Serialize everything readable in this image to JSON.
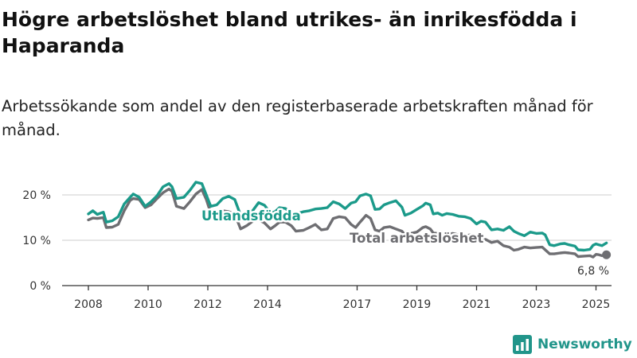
{
  "title": "Högre arbetslöshet bland utrikes- än inrikesfödda i Haparanda",
  "subtitle": "Arbetssökande som andel av den registerbaserade arbetskraften månad för månad.",
  "brand": {
    "name": "Newsworthy"
  },
  "colors": {
    "utlandsfodda": "#1b9a8a",
    "total": "#6e6e72",
    "grid": "#cccccc",
    "axis": "#333333"
  },
  "chart_data": {
    "type": "line",
    "title": "Högre arbetslöshet bland utrikes- än inrikesfödda i Haparanda",
    "subtitle": "Arbetssökande som andel av den registerbaserade arbetskraften månad för månad.",
    "xlabel": "",
    "ylabel": "",
    "xlim": [
      2007.6,
      2025.6
    ],
    "ylim": [
      0,
      20
    ],
    "yticks": [
      0,
      10,
      20
    ],
    "ytick_labels": [
      "0 %",
      "10 %",
      "20 %"
    ],
    "xticks": [
      2008,
      2010,
      2012,
      2014,
      2017,
      2019,
      2021,
      2023,
      2025
    ],
    "xtick_labels": [
      "2008",
      "2010",
      "2012",
      "2014",
      "2017",
      "2019",
      "2021",
      "2023",
      "2025"
    ],
    "grid": "horizontal",
    "legend": "direct labels",
    "end_label": "6,8 %",
    "series": [
      {
        "name": "Utlandsfödda",
        "color": "#1b9a8a",
        "points": [
          [
            2008.0,
            15.8
          ],
          [
            2008.15,
            16.5
          ],
          [
            2008.3,
            15.7
          ],
          [
            2008.5,
            16.2
          ],
          [
            2008.6,
            14.0
          ],
          [
            2008.8,
            14.3
          ],
          [
            2009.0,
            15.2
          ],
          [
            2009.2,
            18.0
          ],
          [
            2009.4,
            19.5
          ],
          [
            2009.5,
            20.2
          ],
          [
            2009.7,
            19.5
          ],
          [
            2009.9,
            17.5
          ],
          [
            2010.1,
            18.5
          ],
          [
            2010.3,
            19.8
          ],
          [
            2010.5,
            21.8
          ],
          [
            2010.7,
            22.5
          ],
          [
            2010.8,
            21.8
          ],
          [
            2010.95,
            19.2
          ],
          [
            2011.2,
            19.5
          ],
          [
            2011.4,
            21.0
          ],
          [
            2011.6,
            22.8
          ],
          [
            2011.8,
            22.5
          ],
          [
            2011.95,
            20.0
          ],
          [
            2012.1,
            17.5
          ],
          [
            2012.3,
            17.8
          ],
          [
            2012.5,
            19.2
          ],
          [
            2012.7,
            19.7
          ],
          [
            2012.9,
            19.0
          ],
          [
            2013.1,
            15.5
          ],
          [
            2013.3,
            15.8
          ],
          [
            2013.5,
            16.5
          ],
          [
            2013.7,
            18.3
          ],
          [
            2013.9,
            17.7
          ],
          [
            2014.1,
            16.0
          ],
          [
            2014.25,
            16.3
          ],
          [
            2014.4,
            17.2
          ],
          [
            2014.6,
            17.0
          ],
          [
            2014.8,
            16.0
          ],
          [
            2014.95,
            15.8
          ],
          [
            2015.2,
            16.3
          ],
          [
            2015.4,
            16.5
          ],
          [
            2015.6,
            16.9
          ],
          [
            2015.8,
            17.0
          ],
          [
            2016.0,
            17.2
          ],
          [
            2016.2,
            18.5
          ],
          [
            2016.4,
            18.0
          ],
          [
            2016.6,
            17.0
          ],
          [
            2016.8,
            18.2
          ],
          [
            2016.95,
            18.5
          ],
          [
            2017.1,
            19.8
          ],
          [
            2017.3,
            20.2
          ],
          [
            2017.45,
            19.8
          ],
          [
            2017.6,
            16.8
          ],
          [
            2017.75,
            16.9
          ],
          [
            2017.9,
            17.8
          ],
          [
            2018.1,
            18.3
          ],
          [
            2018.3,
            18.7
          ],
          [
            2018.5,
            17.3
          ],
          [
            2018.6,
            15.5
          ],
          [
            2018.8,
            16.0
          ],
          [
            2019.0,
            16.8
          ],
          [
            2019.2,
            17.6
          ],
          [
            2019.3,
            18.2
          ],
          [
            2019.45,
            17.8
          ],
          [
            2019.55,
            15.8
          ],
          [
            2019.7,
            16.0
          ],
          [
            2019.85,
            15.5
          ],
          [
            2020.0,
            15.9
          ],
          [
            2020.2,
            15.7
          ],
          [
            2020.4,
            15.3
          ],
          [
            2020.6,
            15.2
          ],
          [
            2020.8,
            14.8
          ],
          [
            2021.0,
            13.6
          ],
          [
            2021.15,
            14.2
          ],
          [
            2021.3,
            14.0
          ],
          [
            2021.5,
            12.3
          ],
          [
            2021.7,
            12.5
          ],
          [
            2021.9,
            12.2
          ],
          [
            2022.1,
            13.0
          ],
          [
            2022.25,
            12.0
          ],
          [
            2022.4,
            11.5
          ],
          [
            2022.6,
            11.0
          ],
          [
            2022.8,
            11.8
          ],
          [
            2023.0,
            11.5
          ],
          [
            2023.2,
            11.6
          ],
          [
            2023.3,
            11.2
          ],
          [
            2023.45,
            9.0
          ],
          [
            2023.6,
            8.8
          ],
          [
            2023.8,
            9.2
          ],
          [
            2023.95,
            9.3
          ],
          [
            2024.1,
            9.0
          ],
          [
            2024.3,
            8.7
          ],
          [
            2024.4,
            7.9
          ],
          [
            2024.6,
            7.8
          ],
          [
            2024.8,
            8.0
          ],
          [
            2024.9,
            8.9
          ],
          [
            2025.0,
            9.2
          ],
          [
            2025.1,
            9.0
          ],
          [
            2025.2,
            8.8
          ],
          [
            2025.35,
            9.4
          ]
        ]
      },
      {
        "name": "Total arbetslöshet",
        "color": "#6e6e72",
        "points": [
          [
            2008.0,
            14.5
          ],
          [
            2008.15,
            14.9
          ],
          [
            2008.3,
            14.8
          ],
          [
            2008.5,
            15.0
          ],
          [
            2008.6,
            12.8
          ],
          [
            2008.8,
            12.9
          ],
          [
            2009.0,
            13.5
          ],
          [
            2009.2,
            16.5
          ],
          [
            2009.4,
            18.8
          ],
          [
            2009.5,
            19.2
          ],
          [
            2009.7,
            19.0
          ],
          [
            2009.9,
            17.2
          ],
          [
            2010.1,
            17.8
          ],
          [
            2010.3,
            19.2
          ],
          [
            2010.5,
            20.5
          ],
          [
            2010.7,
            21.3
          ],
          [
            2010.8,
            20.8
          ],
          [
            2010.95,
            17.5
          ],
          [
            2011.2,
            17.0
          ],
          [
            2011.4,
            18.5
          ],
          [
            2011.6,
            20.2
          ],
          [
            2011.8,
            21.2
          ],
          [
            2011.95,
            19.0
          ],
          [
            2012.1,
            16.0
          ],
          [
            2012.3,
            15.8
          ],
          [
            2012.5,
            16.5
          ],
          [
            2012.7,
            16.3
          ],
          [
            2012.9,
            15.8
          ],
          [
            2013.1,
            12.5
          ],
          [
            2013.3,
            13.2
          ],
          [
            2013.5,
            14.2
          ],
          [
            2013.7,
            14.5
          ],
          [
            2013.9,
            13.8
          ],
          [
            2014.1,
            12.5
          ],
          [
            2014.25,
            13.2
          ],
          [
            2014.4,
            14.0
          ],
          [
            2014.6,
            14.0
          ],
          [
            2014.8,
            13.2
          ],
          [
            2014.95,
            12.0
          ],
          [
            2015.2,
            12.2
          ],
          [
            2015.4,
            12.8
          ],
          [
            2015.6,
            13.5
          ],
          [
            2015.8,
            12.3
          ],
          [
            2016.0,
            12.5
          ],
          [
            2016.2,
            14.8
          ],
          [
            2016.4,
            15.2
          ],
          [
            2016.6,
            15.0
          ],
          [
            2016.8,
            13.5
          ],
          [
            2016.95,
            12.8
          ],
          [
            2017.1,
            14.0
          ],
          [
            2017.3,
            15.5
          ],
          [
            2017.45,
            14.8
          ],
          [
            2017.6,
            12.3
          ],
          [
            2017.75,
            12.0
          ],
          [
            2017.9,
            12.8
          ],
          [
            2018.1,
            13.0
          ],
          [
            2018.3,
            12.5
          ],
          [
            2018.5,
            12.0
          ],
          [
            2018.6,
            11.2
          ],
          [
            2018.8,
            11.5
          ],
          [
            2019.0,
            11.8
          ],
          [
            2019.2,
            12.8
          ],
          [
            2019.3,
            13.0
          ],
          [
            2019.45,
            12.5
          ],
          [
            2019.55,
            11.6
          ],
          [
            2019.7,
            11.5
          ],
          [
            2019.85,
            11.0
          ],
          [
            2020.0,
            11.3
          ],
          [
            2020.2,
            11.5
          ],
          [
            2020.4,
            11.2
          ],
          [
            2020.6,
            11.0
          ],
          [
            2020.8,
            11.2
          ],
          [
            2021.0,
            10.8
          ],
          [
            2021.15,
            10.0
          ],
          [
            2021.3,
            10.2
          ],
          [
            2021.5,
            9.5
          ],
          [
            2021.7,
            9.8
          ],
          [
            2021.9,
            8.8
          ],
          [
            2022.1,
            8.5
          ],
          [
            2022.25,
            7.8
          ],
          [
            2022.4,
            8.0
          ],
          [
            2022.6,
            8.5
          ],
          [
            2022.8,
            8.3
          ],
          [
            2023.0,
            8.4
          ],
          [
            2023.2,
            8.5
          ],
          [
            2023.3,
            7.9
          ],
          [
            2023.45,
            7.0
          ],
          [
            2023.6,
            7.0
          ],
          [
            2023.8,
            7.2
          ],
          [
            2023.95,
            7.3
          ],
          [
            2024.1,
            7.2
          ],
          [
            2024.3,
            7.0
          ],
          [
            2024.4,
            6.4
          ],
          [
            2024.6,
            6.5
          ],
          [
            2024.8,
            6.6
          ],
          [
            2024.9,
            6.3
          ],
          [
            2025.0,
            6.9
          ],
          [
            2025.1,
            6.8
          ],
          [
            2025.2,
            6.6
          ],
          [
            2025.35,
            6.8
          ]
        ]
      }
    ]
  }
}
